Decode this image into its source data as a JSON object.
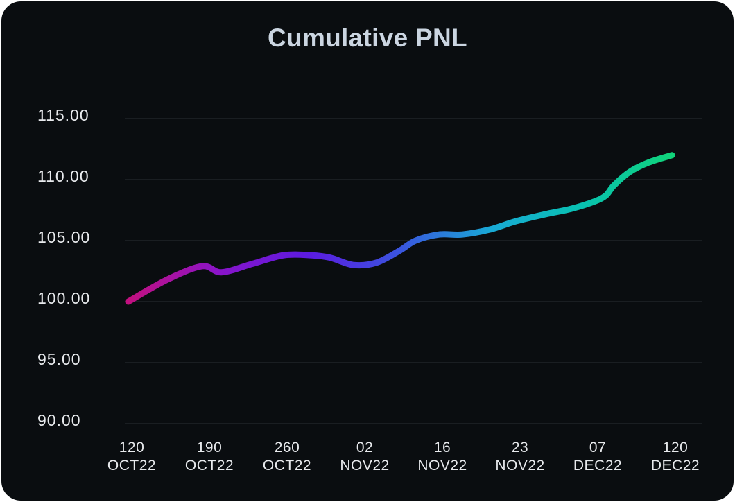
{
  "chart_data": {
    "type": "line",
    "title": "Cumulative PNL",
    "xlabel": "",
    "ylabel": "",
    "ylim": [
      90,
      115
    ],
    "y_ticks": [
      "115.00",
      "110.00",
      "105.00",
      "100.00",
      "95.00",
      "90.00"
    ],
    "y_tick_values": [
      115,
      110,
      105,
      100,
      95,
      90
    ],
    "x_ticks": [
      {
        "line1": "120",
        "line2": "OCT22"
      },
      {
        "line1": "190",
        "line2": "OCT22"
      },
      {
        "line1": "260",
        "line2": "OCT22"
      },
      {
        "line1": "02",
        "line2": "NOV22"
      },
      {
        "line1": "16",
        "line2": "NOV22"
      },
      {
        "line1": "23",
        "line2": "NOV22"
      },
      {
        "line1": "07",
        "line2": "DEC22"
      },
      {
        "line1": "120",
        "line2": "DEC22"
      }
    ],
    "grid": true,
    "legend": "none",
    "series": [
      {
        "x": [
          0,
          0.5,
          0.95,
          1.2,
          1.6,
          2.0,
          2.35,
          2.6,
          2.9,
          3.2,
          3.5,
          3.7,
          4.0,
          4.3,
          4.65,
          5.0,
          5.4,
          5.7,
          6.0,
          6.15,
          6.25,
          6.45,
          6.7,
          7.0
        ],
        "values": [
          100.0,
          101.8,
          102.9,
          102.4,
          103.1,
          103.8,
          103.8,
          103.6,
          103.0,
          103.2,
          104.2,
          105.0,
          105.5,
          105.5,
          105.9,
          106.6,
          107.2,
          107.6,
          108.2,
          108.7,
          109.5,
          110.6,
          111.4,
          112.0
        ]
      }
    ],
    "colors": {
      "background": "#0a0d10",
      "gradient": [
        "#c2107f",
        "#8a14c9",
        "#5b1be0",
        "#3a55df",
        "#19a9d6",
        "#08c1b1",
        "#10d47a"
      ]
    }
  }
}
